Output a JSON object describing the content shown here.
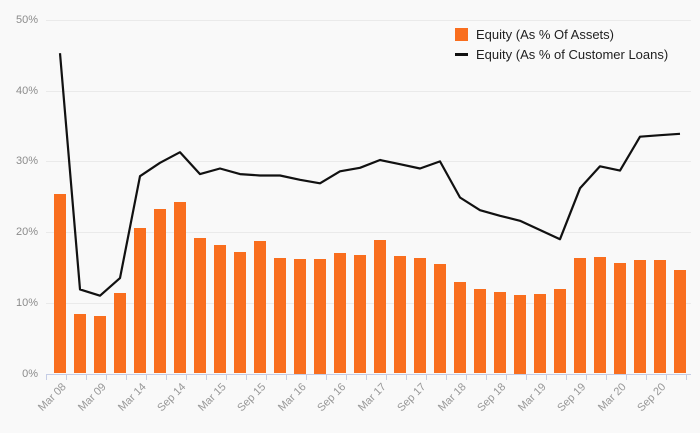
{
  "chart_data": {
    "type": "bar",
    "subtype": "bar-line-combo",
    "categories": [
      "Mar 08",
      "",
      "Mar 09",
      "",
      "Mar 14",
      "",
      "Sep 14",
      "",
      "Mar 15",
      "",
      "Sep 15",
      "",
      "Mar 16",
      "",
      "Sep 16",
      "",
      "Mar 17",
      "",
      "Sep 17",
      "",
      "Mar 18",
      "",
      "Sep 18",
      "",
      "Mar 19",
      "",
      "Sep 19",
      "",
      "Mar 20",
      "",
      "Sep 20",
      ""
    ],
    "series": [
      {
        "name": "Equity (As % Of Assets)",
        "type": "bar",
        "color": "#f96e1e",
        "values": [
          25.4,
          8.4,
          8.1,
          11.4,
          20.6,
          23.3,
          24.2,
          19.2,
          18.2,
          17.2,
          18.7,
          16.4,
          16.2,
          16.2,
          17.0,
          16.7,
          18.9,
          16.6,
          16.4,
          15.5,
          13.0,
          12.0,
          11.5,
          11.1,
          11.3,
          12.0,
          16.3,
          16.5,
          15.7,
          16.1,
          16.0,
          14.7
        ]
      },
      {
        "name": "Equity (As % of Customer Loans)",
        "type": "line",
        "color": "#111111",
        "values": [
          45.3,
          11.9,
          11.0,
          13.5,
          27.9,
          29.8,
          31.3,
          28.2,
          29.0,
          28.2,
          28.0,
          28.0,
          27.4,
          26.9,
          28.6,
          29.1,
          30.2,
          29.6,
          29.0,
          30.0,
          24.9,
          23.1,
          22.3,
          21.6,
          20.3,
          19.0,
          26.2,
          29.3,
          28.7,
          33.5,
          33.7,
          33.9
        ]
      }
    ],
    "y_axis": {
      "min": 0,
      "max": 50,
      "tick_interval": 10,
      "tick_labels": [
        "0%",
        "10%",
        "20%",
        "30%",
        "40%",
        "50%"
      ]
    },
    "legend_position": "top-right",
    "grid": "horizontal"
  },
  "colors": {
    "background": "#f9f9f9",
    "gridline": "#eaeaea",
    "axis": "#c5cde6",
    "bar": "#f96e1e",
    "line": "#111111"
  }
}
